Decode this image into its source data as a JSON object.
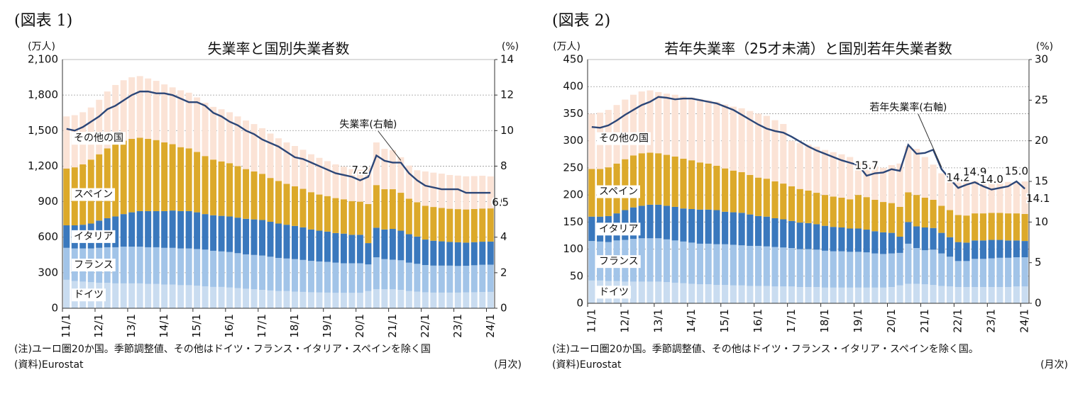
{
  "panels": [
    {
      "label": "(図表 1)"
    },
    {
      "label": "(図表 2)"
    }
  ],
  "chart_data": [
    {
      "type": "bar",
      "stacked": true,
      "title": "失業率と国別失業者数",
      "y_label": "(万人)",
      "y2_label": "(%)",
      "notes": "(注)ユーロ圏20か国。季節調整値、その他はドイツ・フランス・イタリア・スペインを除く国",
      "source": "(資料)Eurostat",
      "x_unit": "(月次)",
      "grid": true,
      "categories": [
        "11/1",
        null,
        null,
        null,
        "12/1",
        null,
        null,
        null,
        "13/1",
        null,
        null,
        null,
        "14/1",
        null,
        null,
        null,
        "15/1",
        null,
        null,
        null,
        "16/1",
        null,
        null,
        null,
        "17/1",
        null,
        null,
        null,
        "18/1",
        null,
        null,
        null,
        "19/1",
        null,
        null,
        null,
        "20/1",
        null,
        null,
        null,
        "21/1",
        null,
        null,
        null,
        "22/1",
        null,
        null,
        null,
        "23/1",
        null,
        null,
        null,
        "24/1"
      ],
      "ylim": [
        0,
        2100
      ],
      "yticks": [
        0,
        300,
        600,
        900,
        {
          "value": 1200,
          "label": "1,200"
        },
        {
          "value": 1500,
          "label": "1,500"
        },
        {
          "value": 1800,
          "label": "1,800"
        },
        {
          "value": 2100,
          "label": "2,100"
        }
      ],
      "y2lim": [
        0,
        14
      ],
      "y2ticks": [
        0,
        2,
        4,
        6,
        8,
        10,
        12,
        14
      ],
      "series": [
        {
          "name": "ドイツ",
          "color": "#c9dcf0",
          "values": [
            240,
            230,
            225,
            220,
            215,
            215,
            210,
            210,
            210,
            210,
            205,
            205,
            200,
            200,
            195,
            195,
            190,
            185,
            180,
            180,
            175,
            170,
            165,
            160,
            155,
            150,
            145,
            145,
            140,
            138,
            135,
            133,
            132,
            130,
            130,
            130,
            130,
            145,
            160,
            160,
            160,
            155,
            145,
            140,
            135,
            132,
            132,
            132,
            132,
            134,
            135,
            137,
            138
          ]
        },
        {
          "name": "フランス",
          "color": "#a2c4e8",
          "values": [
            270,
            275,
            280,
            285,
            295,
            300,
            305,
            310,
            310,
            310,
            310,
            310,
            310,
            310,
            310,
            310,
            310,
            310,
            305,
            300,
            300,
            295,
            290,
            290,
            290,
            285,
            280,
            275,
            275,
            270,
            265,
            262,
            260,
            255,
            250,
            250,
            250,
            225,
            270,
            255,
            250,
            250,
            240,
            235,
            230,
            228,
            228,
            228,
            225,
            225,
            228,
            230,
            230
          ]
        },
        {
          "name": "イタリア",
          "color": "#3a78bd",
          "values": [
            190,
            195,
            200,
            210,
            230,
            245,
            260,
            275,
            290,
            300,
            305,
            305,
            310,
            315,
            315,
            315,
            310,
            300,
            300,
            300,
            300,
            300,
            300,
            300,
            300,
            295,
            290,
            285,
            280,
            275,
            265,
            260,
            255,
            250,
            250,
            240,
            240,
            180,
            250,
            250,
            260,
            250,
            240,
            230,
            215,
            210,
            205,
            200,
            200,
            195,
            195,
            195,
            195
          ]
        },
        {
          "name": "スペイン",
          "color": "#dca92a",
          "values": [
            480,
            490,
            510,
            540,
            560,
            590,
            610,
            620,
            620,
            620,
            610,
            600,
            580,
            560,
            540,
            530,
            510,
            490,
            470,
            460,
            450,
            435,
            420,
            405,
            390,
            370,
            360,
            345,
            335,
            325,
            315,
            305,
            300,
            295,
            290,
            285,
            280,
            330,
            360,
            340,
            335,
            320,
            300,
            290,
            285,
            285,
            282,
            280,
            280,
            280,
            280,
            280,
            280
          ]
        },
        {
          "name": "その他の国",
          "color": "#fbe3d6",
          "values": [
            440,
            440,
            440,
            440,
            460,
            480,
            500,
            510,
            520,
            520,
            510,
            500,
            490,
            480,
            480,
            470,
            460,
            450,
            445,
            440,
            430,
            420,
            410,
            400,
            385,
            375,
            360,
            350,
            340,
            330,
            320,
            310,
            295,
            285,
            275,
            270,
            270,
            310,
            360,
            340,
            330,
            300,
            280,
            270,
            290,
            290,
            290,
            285,
            283,
            280,
            278,
            277,
            270
          ]
        },
        {
          "name": "失業率(右軸)",
          "type": "line",
          "axis": "y2",
          "color": "#2c4677",
          "values": [
            10.1,
            10.0,
            10.2,
            10.5,
            10.8,
            11.2,
            11.4,
            11.7,
            12.0,
            12.2,
            12.2,
            12.1,
            12.1,
            12.0,
            11.8,
            11.6,
            11.6,
            11.4,
            11.0,
            10.8,
            10.5,
            10.3,
            10.0,
            9.8,
            9.5,
            9.3,
            9.1,
            8.8,
            8.5,
            8.4,
            8.2,
            8.0,
            7.8,
            7.6,
            7.5,
            7.4,
            7.2,
            7.4,
            8.6,
            8.3,
            8.2,
            8.2,
            7.6,
            7.2,
            6.9,
            6.8,
            6.7,
            6.7,
            6.7,
            6.5,
            6.5,
            6.5,
            6.5
          ],
          "value_labels": [
            null,
            null,
            null,
            null,
            null,
            null,
            null,
            null,
            null,
            null,
            null,
            null,
            null,
            null,
            null,
            null,
            null,
            null,
            null,
            null,
            null,
            null,
            null,
            null,
            null,
            null,
            null,
            null,
            null,
            null,
            null,
            null,
            null,
            null,
            null,
            null,
            "7.2",
            null,
            null,
            null,
            null,
            null,
            null,
            null,
            null,
            null,
            null,
            null,
            null,
            null,
            null,
            null,
            "6.5"
          ]
        }
      ]
    },
    {
      "type": "bar",
      "stacked": true,
      "title": "若年失業率（25才未満）と国別若年失業者数",
      "y_label": "(万人)",
      "y2_label": "(%)",
      "notes": "(注)ユーロ圏20か国。季節調整値、その他はドイツ・フランス・イタリア・スペインを除く国。",
      "source": "(資料)Eurostat",
      "x_unit": "(月次)",
      "grid": true,
      "categories": [
        "11/1",
        null,
        null,
        null,
        "12/1",
        null,
        null,
        null,
        "13/1",
        null,
        null,
        null,
        "14/1",
        null,
        null,
        null,
        "15/1",
        null,
        null,
        null,
        "16/1",
        null,
        null,
        null,
        "17/1",
        null,
        null,
        null,
        "18/1",
        null,
        null,
        null,
        "19/1",
        null,
        null,
        null,
        "20/1",
        null,
        null,
        null,
        "21/1",
        null,
        null,
        null,
        "22/1",
        null,
        null,
        null,
        "23/1",
        null,
        null,
        null,
        "24/1"
      ],
      "ylim": [
        0,
        450
      ],
      "yticks": [
        0,
        50,
        100,
        150,
        200,
        250,
        300,
        350,
        400,
        450
      ],
      "y2lim": [
        0,
        30
      ],
      "y2ticks": [
        0,
        5,
        10,
        15,
        20,
        25,
        30
      ],
      "series": [
        {
          "name": "ドイツ",
          "color": "#c9dcf0",
          "values": [
            42,
            42,
            41,
            41,
            40,
            40,
            40,
            40,
            40,
            39,
            38,
            37,
            36,
            35,
            35,
            34,
            34,
            33,
            33,
            32,
            32,
            32,
            31,
            31,
            31,
            30,
            30,
            30,
            29,
            29,
            29,
            29,
            29,
            29,
            29,
            29,
            30,
            33,
            36,
            36,
            35,
            34,
            32,
            31,
            30,
            30,
            30,
            30,
            30,
            30,
            30,
            31,
            31
          ]
        },
        {
          "name": "フランス",
          "color": "#a2c4e8",
          "values": [
            73,
            72,
            72,
            75,
            77,
            79,
            80,
            80,
            80,
            79,
            78,
            77,
            76,
            75,
            75,
            75,
            75,
            75,
            74,
            74,
            74,
            73,
            73,
            72,
            71,
            70,
            70,
            69,
            68,
            67,
            67,
            66,
            66,
            65,
            63,
            62,
            62,
            60,
            74,
            66,
            63,
            65,
            60,
            55,
            48,
            48,
            52,
            52,
            53,
            54,
            54,
            54,
            54
          ]
        },
        {
          "name": "イタリア",
          "color": "#3a78bd",
          "values": [
            45,
            46,
            48,
            50,
            55,
            58,
            60,
            62,
            62,
            62,
            62,
            61,
            62,
            63,
            63,
            63,
            60,
            60,
            60,
            58,
            55,
            55,
            53,
            52,
            50,
            49,
            48,
            47,
            46,
            45,
            44,
            43,
            43,
            42,
            41,
            40,
            38,
            30,
            40,
            40,
            42,
            40,
            38,
            36,
            35,
            34,
            34,
            34,
            34,
            33,
            32,
            31,
            30
          ]
        },
        {
          "name": "スペイン",
          "color": "#dca92a",
          "values": [
            88,
            88,
            90,
            92,
            94,
            96,
            97,
            96,
            95,
            94,
            93,
            92,
            90,
            87,
            85,
            82,
            80,
            77,
            75,
            73,
            71,
            70,
            68,
            66,
            64,
            62,
            60,
            58,
            57,
            56,
            55,
            54,
            62,
            60,
            58,
            56,
            55,
            55,
            55,
            58,
            55,
            52,
            50,
            50,
            50,
            50,
            50,
            50,
            50,
            50,
            50,
            50,
            50
          ]
        },
        {
          "name": "その他の国",
          "color": "#fbe3d6",
          "values": [
            102,
            104,
            106,
            108,
            110,
            112,
            114,
            115,
            113,
            113,
            114,
            115,
            116,
            117,
            117,
            118,
            118,
            118,
            118,
            118,
            118,
            116,
            113,
            110,
            84,
            85,
            85,
            85,
            83,
            82,
            80,
            78,
            60,
            60,
            62,
            63,
            70,
            80,
            85,
            85,
            75,
            65,
            60,
            60,
            65,
            63,
            60,
            60,
            60,
            60,
            58,
            58,
            60
          ]
        },
        {
          "name": "若年失業率(右軸)",
          "type": "line",
          "axis": "y2",
          "color": "#2c4677",
          "values": [
            21.7,
            21.6,
            21.9,
            22.5,
            23.2,
            23.8,
            24.4,
            24.8,
            25.4,
            25.3,
            25.1,
            25.2,
            25.2,
            25.0,
            24.8,
            24.6,
            24.2,
            23.8,
            23.2,
            22.6,
            22.0,
            21.5,
            21.2,
            21.0,
            20.5,
            19.9,
            19.3,
            18.8,
            18.4,
            18.0,
            17.6,
            17.3,
            17.0,
            15.7,
            16.0,
            16.1,
            16.5,
            16.3,
            19.5,
            18.4,
            18.5,
            18.9,
            16.5,
            15.3,
            14.2,
            14.6,
            14.9,
            14.4,
            14.0,
            14.2,
            14.4,
            15.0,
            14.1
          ],
          "value_labels": [
            null,
            null,
            null,
            null,
            null,
            null,
            null,
            null,
            null,
            null,
            null,
            null,
            null,
            null,
            null,
            null,
            null,
            null,
            null,
            null,
            null,
            null,
            null,
            null,
            null,
            null,
            null,
            null,
            null,
            null,
            null,
            null,
            null,
            "15.7",
            null,
            null,
            null,
            null,
            null,
            null,
            null,
            null,
            null,
            null,
            "14.2",
            null,
            "14.9",
            null,
            "14.0",
            null,
            null,
            "15.0",
            "14.1"
          ]
        }
      ]
    }
  ]
}
